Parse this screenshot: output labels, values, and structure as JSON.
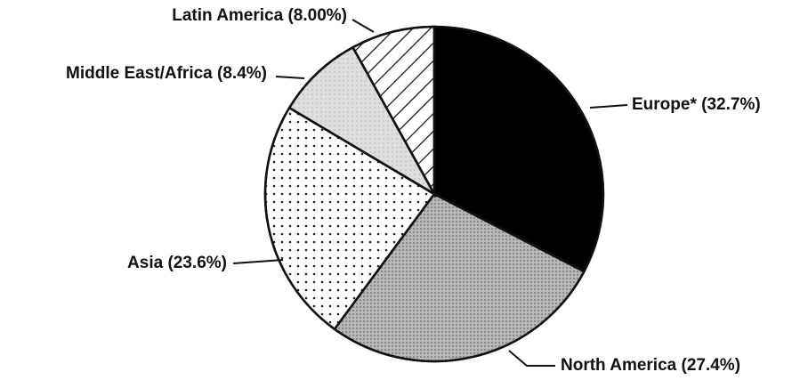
{
  "chart_data": {
    "type": "pie",
    "categories": [
      "Europe*",
      "North America",
      "Asia",
      "Middle East/Africa",
      "Latin America"
    ],
    "values": [
      32.7,
      27.4,
      23.6,
      8.4,
      8
    ],
    "value_labels": [
      "(32.7%)",
      "(27.4%)",
      "(23.6%)",
      "(8.4%)",
      "(8.00%)"
    ],
    "colors": [
      "#000000",
      "#b8b8b8",
      "#ffffff",
      "#dedede",
      "#ffffff"
    ]
  }
}
